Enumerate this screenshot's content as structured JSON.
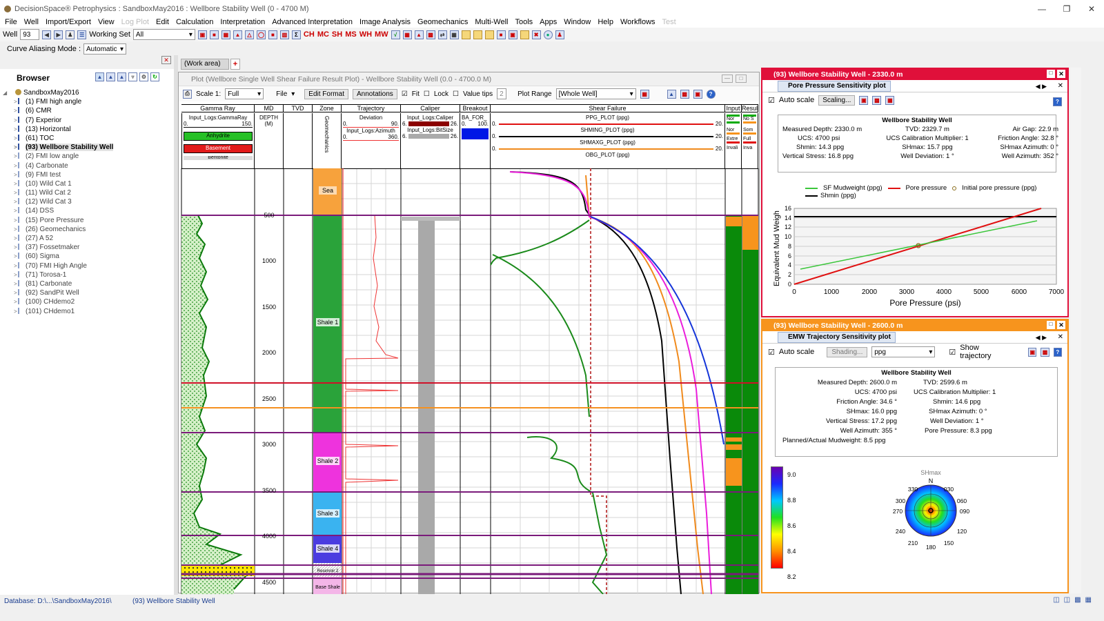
{
  "window": {
    "title": "DecisionSpace® Petrophysics : SandboxMay2016 : Wellbore Stability Well (0 - 4700 M)"
  },
  "menu": [
    "File",
    "Well",
    "Import/Export",
    "View",
    "Log Plot",
    "Edit",
    "Calculation",
    "Interpretation",
    "Advanced Interpretation",
    "Image Analysis",
    "Geomechanics",
    "Multi-Well",
    "Tools",
    "Apps",
    "Window",
    "Help",
    "Workflows",
    "Test"
  ],
  "toolbar": {
    "well_label": "Well",
    "well_value": "93",
    "working_set_label": "Working Set",
    "working_set_value": "All",
    "ch": "CH",
    "mc": "MC",
    "sh": "SH",
    "ms": "MS",
    "wh": "WH",
    "mw": "MW"
  },
  "curve_aliasing": {
    "label": "Curve Aliasing Mode :",
    "value": "Automatic"
  },
  "browser": {
    "title": "Browser",
    "root": "SandboxMay2016",
    "items": [
      "(1) FMI high angle",
      "(6) CMR",
      "(7) Experior",
      "(13) Horizontal",
      "(61) TOC",
      "(93) Wellbore Stability Well",
      "(2) FMI low angle",
      "(4) Carbonate",
      "(9) FMI test",
      "(10) Wild Cat 1",
      "(11) Wild Cat 2",
      "(12) Wild Cat 3",
      "(14) DSS",
      "(15) Pore Pressure",
      "(26) Geomechanics",
      "(27) A 52",
      "(37) Fossetmaker",
      "(60) Sigma",
      "(70) FMI High Angle",
      "(71) Torosa-1",
      "(81) Carbonate",
      "(92) SandPit Well",
      "(100) CHdemo2",
      "(101) CHdemo1"
    ]
  },
  "work_area_tab": "(Work area)",
  "plot": {
    "title": "Plot (Wellbore Single Well Shear Failure Result Plot) - Wellbore Stability Well (0.0 - 4700.0 M)",
    "scale_label": "Scale 1:",
    "scale_value": "Full",
    "file": "File",
    "edit_format": "Edit Format",
    "annotations": "Annotations",
    "fit": "Fit",
    "lock": "Lock",
    "value_tips": "Value tips",
    "value_tips_num": "2",
    "plot_range_label": "Plot Range",
    "plot_range_value": "[Whole Well]",
    "tracks": [
      "Gamma Ray",
      "MD",
      "TVD",
      "Zone",
      "Trajectory",
      "Caliper",
      "Breakout",
      "Shear Failure",
      "Input",
      "Result"
    ],
    "gr_curve": "Input_Logs:GammaRay",
    "gr_min": "0.",
    "gr_max": "150.",
    "anhydrite": "Anhydrite",
    "basement": "Basement",
    "bentonite": "Bentonite",
    "depth_label": "DEPTH",
    "depth_unit": "(M)",
    "geomech": "Geomechanics",
    "dev_label": "Deviation",
    "dev_min": "0.",
    "dev_max": "90.",
    "azi_label": "Input_Logs:Azimuth",
    "azi_min": "0.",
    "azi_max": "360.",
    "cal_label": "Input_Logs:Caliper",
    "cal_min": "6.",
    "cal_max": "26.",
    "bit_label": "Input_Logs:BitSize",
    "bit_min": "6.",
    "bit_max": "26.",
    "bo_label": "BA_FOR_",
    "bo_min": "0.",
    "bo_max": "100.",
    "sf_curves": [
      "PPG_PLOT (ppg)",
      "SHMING_PLOT (ppg)",
      "SHMAXG_PLOT (ppg)",
      "OBG_PLOT (ppg)"
    ],
    "sf_min": "0.",
    "sf_max": "20.",
    "input_lbl": [
      "Nor",
      "Nor",
      "Extre",
      "Invali"
    ],
    "result_lbl": [
      "No S",
      "Som",
      "Full",
      "Inva"
    ],
    "depths": [
      "500",
      "1000",
      "1500",
      "2000",
      "2500",
      "3000",
      "3500",
      "4000",
      "4500"
    ],
    "zones": [
      "Sea",
      "Shale 1",
      "Shale 2",
      "Shale 3",
      "Shale 4",
      "Reservoir 2",
      "Base Shale"
    ]
  },
  "pp": {
    "title": "(93) Wellbore Stability Well - 2330.0 m",
    "tab": "Pore Pressure Sensitivity plot",
    "auto_scale": "Auto scale",
    "scaling": "Scaling...",
    "well": "Wellbore Stability Well",
    "info": [
      "Measured Depth: 2330.0 m",
      "TVD: 2329.7 m",
      "Air Gap: 22.9 m",
      "UCS: 4700 psi",
      "UCS Calibration Multiplier: 1",
      "Friction Angle: 32.8 °",
      "Shmin: 14.3 ppg",
      "SHmax: 15.7 ppg",
      "SHmax Azimuth: 0 °",
      "Vertical Stress: 16.8 ppg",
      "Well Deviation: 1 °",
      "Well Azimuth: 352 °"
    ],
    "legend": [
      "SF Mudweight (ppg)",
      "Pore pressure",
      "Initial pore pressure (ppg)",
      "Shmin (ppg)"
    ],
    "xlabel": "Pore Pressure (psi)",
    "ylabel": "Equivalent Mud Weigh",
    "xticks": [
      "0",
      "1000",
      "2000",
      "3000",
      "4000",
      "5000",
      "6000",
      "7000"
    ],
    "yticks": [
      "0",
      "2",
      "4",
      "6",
      "8",
      "10",
      "12",
      "14",
      "16"
    ]
  },
  "emw": {
    "title": "(93) Wellbore Stability Well - 2600.0 m",
    "tab": "EMW Trajectory Sensitivity plot",
    "auto_scale": "Auto scale",
    "shading": "Shading...",
    "unit": "ppg",
    "show_traj": "Show trajectory",
    "well": "Wellbore Stability Well",
    "info": [
      "Measured Depth: 2600.0 m",
      "TVD: 2599.6 m",
      "UCS: 4700 psi",
      "UCS Calibration Multiplier: 1",
      "Friction Angle: 34.6 °",
      "Shmin: 14.6 ppg",
      "SHmax: 16.0 ppg",
      "SHmax Azimuth: 0 °",
      "Vertical Stress: 17.2 ppg",
      "Well Deviation: 1 °",
      "Well Azimuth: 355 °",
      "Pore Pressure: 8.3 ppg",
      "Planned/Actual Mudweight: 8.5 ppg"
    ],
    "scale": [
      "9.0",
      "8.8",
      "8.6",
      "8.4",
      "8.2"
    ],
    "polar_top": "SHmax",
    "polar_n": "N",
    "angles": [
      "330",
      "030",
      "300",
      "060",
      "270",
      "090",
      "240",
      "120",
      "210",
      "180",
      "150"
    ]
  },
  "status": {
    "database": "Database: D:\\...\\SandboxMay2016\\",
    "well": "(93) Wellbore Stability Well"
  }
}
